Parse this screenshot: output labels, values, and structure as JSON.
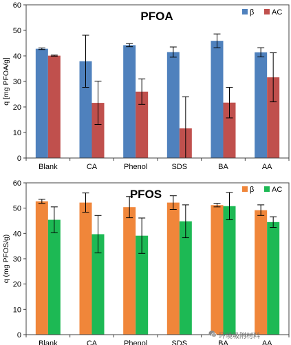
{
  "watermark": {
    "text": "环境吸附材料"
  },
  "chart_data": [
    {
      "type": "bar",
      "title": "PFOA",
      "ylabel": "q [mg PFOA/g]",
      "xlabel": "",
      "ylim": [
        0,
        60
      ],
      "yticks": [
        0,
        10,
        20,
        30,
        40,
        50,
        60
      ],
      "categories": [
        "Blank",
        "CA",
        "Phenol",
        "SDS",
        "BA",
        "AA"
      ],
      "legend": "top-right",
      "grid": false,
      "series": [
        {
          "name": "β",
          "color": "#4f81bd",
          "values": [
            42.8,
            37.9,
            44.2,
            41.5,
            45.9,
            41.4
          ],
          "errors": [
            0.3,
            10.2,
            0.6,
            2.0,
            2.7,
            1.8
          ]
        },
        {
          "name": "AC",
          "color": "#c0504d",
          "values": [
            40.1,
            21.6,
            26.0,
            11.6,
            21.7,
            31.6
          ],
          "errors": [
            0.2,
            8.5,
            5.0,
            12.4,
            6.0,
            9.6
          ]
        }
      ]
    },
    {
      "type": "bar",
      "title": "PFOS",
      "ylabel": "q (mg PFOS/g)",
      "xlabel": "",
      "ylim": [
        0,
        60
      ],
      "yticks": [
        0,
        10,
        20,
        30,
        40,
        50,
        60
      ],
      "categories": [
        "Blank",
        "CA",
        "Phenol",
        "SDS",
        "BA",
        "AA"
      ],
      "legend": "top-right",
      "grid": false,
      "series": [
        {
          "name": "β",
          "color": "#f0863a",
          "values": [
            52.7,
            52.2,
            50.4,
            52.2,
            51.2,
            49.2
          ],
          "errors": [
            0.8,
            3.8,
            4.2,
            2.7,
            0.7,
            2.1
          ]
        },
        {
          "name": "AC",
          "color": "#1db954",
          "values": [
            45.4,
            39.7,
            39.1,
            44.8,
            50.8,
            44.5
          ],
          "errors": [
            5.1,
            7.4,
            7.0,
            6.5,
            5.4,
            2.1
          ]
        }
      ]
    }
  ]
}
